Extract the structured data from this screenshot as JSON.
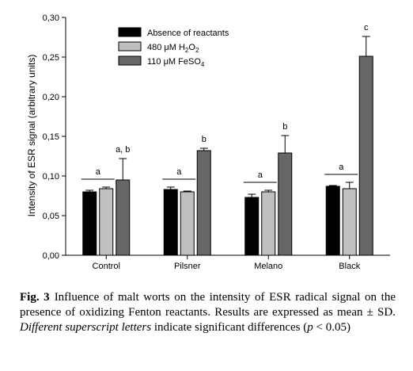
{
  "chart_data": {
    "type": "bar",
    "ylabel": "Intensity of ESR signal (arbitrary units)",
    "ylim": [
      0,
      0.3
    ],
    "yticks": [
      "0,00",
      "0,05",
      "0,10",
      "0,15",
      "0,20",
      "0,25",
      "0,30"
    ],
    "categories": [
      "Control",
      "Pilsner",
      "Melano",
      "Black"
    ],
    "legend_position": "top-left",
    "series": [
      {
        "name": "Absence of reactants",
        "color": "#000000",
        "values": [
          0.08,
          0.083,
          0.073,
          0.087
        ],
        "errors": [
          0.002,
          0.003,
          0.004,
          0.001
        ]
      },
      {
        "name": "480 μM H2O2",
        "color": "#c0c0c0",
        "values": [
          0.084,
          0.08,
          0.08,
          0.084
        ],
        "errors": [
          0.002,
          0.001,
          0.002,
          0.008
        ]
      },
      {
        "name": "110 μM FeSO4",
        "color": "#666666",
        "values": [
          0.095,
          0.132,
          0.129,
          0.251
        ],
        "errors": [
          0.027,
          0.003,
          0.022,
          0.025
        ]
      }
    ],
    "annotations": [
      {
        "category": "Control",
        "text": "a"
      },
      {
        "category": "Control",
        "text": "a, b"
      },
      {
        "category": "Pilsner",
        "text": "a"
      },
      {
        "category": "Pilsner",
        "text": "b"
      },
      {
        "category": "Melano",
        "text": "a"
      },
      {
        "category": "Melano",
        "text": "b"
      },
      {
        "category": "Black",
        "text": "a"
      },
      {
        "category": "Black",
        "text": "c"
      }
    ]
  },
  "legend_labels": {
    "s0": "Absence of reactants",
    "s1_pre": "480 μM H",
    "s1_sub": "2",
    "s1_mid": "O",
    "s1_sub2": "2",
    "s2_pre": "110 μM FeSO",
    "s2_sub": "4"
  },
  "caption": {
    "label": "Fig. 3",
    "t1": "Influence of malt worts on the intensity of ESR radical signal on the presence of oxidizing Fenton reactants. Results are expressed as mean ± SD. ",
    "em1": "Different superscript letters",
    "t2": " indicate significant differences (",
    "em2": "p",
    "t3": " < 0.05)"
  }
}
